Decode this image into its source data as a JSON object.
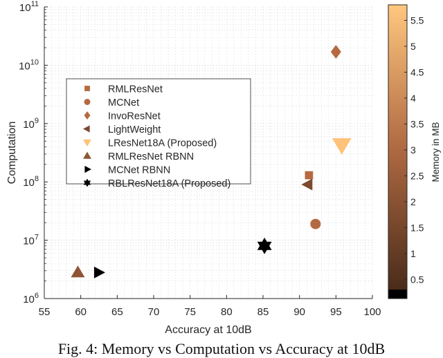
{
  "chart_data": {
    "type": "scatter",
    "title": "",
    "xlabel": "Accuracy at 10dB",
    "ylabel": "Computation",
    "xlim": [
      55,
      100
    ],
    "ylim": [
      1000000,
      100000000000
    ],
    "yscale": "log",
    "grid": true,
    "x_ticks": [
      "55",
      "60",
      "65",
      "70",
      "75",
      "80",
      "85",
      "90",
      "95",
      "100"
    ],
    "y_ticks": [
      "10^6",
      "10^7",
      "10^8",
      "10^9",
      "10^10",
      "10^11"
    ],
    "colorbar": {
      "label": "Memory in MB",
      "ticks": [
        "0.5",
        "1",
        "1.5",
        "2",
        "2.5",
        "3",
        "3.5",
        "4",
        "4.5",
        "5",
        "5.5"
      ],
      "range": [
        0.13,
        5.8
      ],
      "colormap": "copper",
      "low_color": "#000000",
      "high_color": "#ffc77f"
    },
    "legend_position": "upper-left inside",
    "series": [
      {
        "name": "RMLResNet",
        "marker": "square",
        "x": 91.3,
        "y": 130000000,
        "color": "#b56a41"
      },
      {
        "name": "MCNet",
        "marker": "circle",
        "x": 92.2,
        "y": 19000000,
        "color": "#b46a40"
      },
      {
        "name": "InvoResNet",
        "marker": "diamond",
        "x": 95.0,
        "y": 17000000000,
        "color": "#b56a41"
      },
      {
        "name": "LightWeight",
        "marker": "triangle-left",
        "x": 91.2,
        "y": 90000000,
        "color": "#7c4a2e"
      },
      {
        "name": "LResNet18A (Proposed)",
        "marker": "triangle-down",
        "x": 95.8,
        "y": 430000000,
        "color": "#ffc27a"
      },
      {
        "name": "RMLResNet RBNN",
        "marker": "triangle-up",
        "x": 59.6,
        "y": 2800000,
        "color": "#8e5535"
      },
      {
        "name": "MCNet RBNN",
        "marker": "triangle-right",
        "x": 62.4,
        "y": 2800000,
        "color": "#000000"
      },
      {
        "name": "RBLResNet18A (Proposed)",
        "marker": "hexagram",
        "x": 85.2,
        "y": 8000000,
        "color": "#000000"
      }
    ]
  },
  "caption": "Fig. 4: Memory vs Computation vs Accuracy at 10dB"
}
